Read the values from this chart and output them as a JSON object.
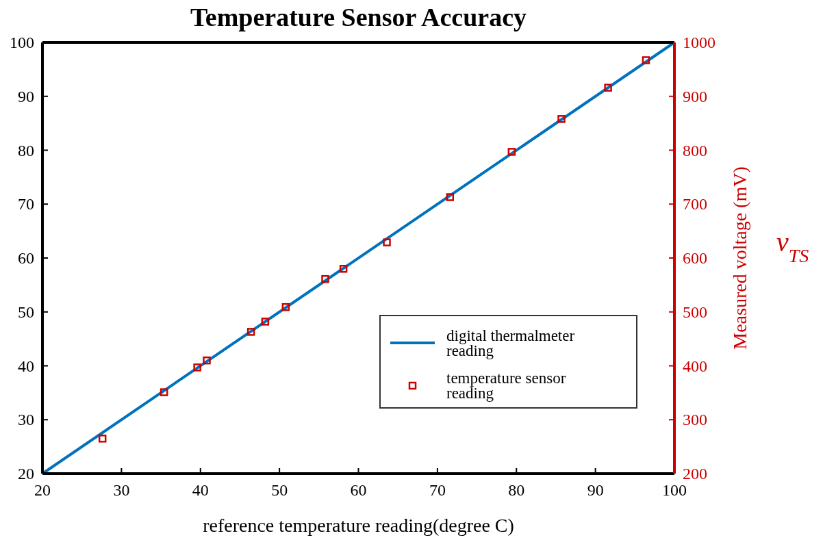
{
  "chart_data": {
    "type": "line",
    "title": "Temperature Sensor Accuracy",
    "xlabel": "reference temperature reading(degree C)",
    "y2label": "Measured voltage (mV)",
    "annotations": [
      "v$_{TS}$"
    ],
    "xlim": [
      20,
      100
    ],
    "xticks": [
      20,
      30,
      40,
      50,
      60,
      70,
      80,
      90,
      100
    ],
    "ylim": [
      20,
      100
    ],
    "yticks": [
      20,
      30,
      40,
      50,
      60,
      70,
      80,
      90,
      100
    ],
    "y2lim": [
      200,
      1000
    ],
    "y2ticks": [
      200,
      300,
      400,
      500,
      600,
      700,
      800,
      900,
      1000
    ],
    "legend": "bottom right",
    "grid": false,
    "series": [
      {
        "name": "digital thermalmeter reading",
        "color": "#0072bd",
        "x": [
          20,
          100
        ],
        "values": [
          20,
          100
        ],
        "line_style": "solid",
        "marker": "none"
      },
      {
        "name": "temperature sensor reading",
        "type": "scatter",
        "axis": "y2",
        "color": "#cc0000",
        "marker": "square",
        "x": [
          27.6,
          35.4,
          39.6,
          40.8,
          46.4,
          48.2,
          50.8,
          55.8,
          58.1,
          63.6,
          71.6,
          79.4,
          85.7,
          91.6,
          96.4
        ],
        "values": [
          265,
          351,
          397,
          410,
          463,
          482,
          509,
          561,
          580,
          629,
          713,
          797,
          858,
          916,
          967
        ]
      }
    ]
  }
}
